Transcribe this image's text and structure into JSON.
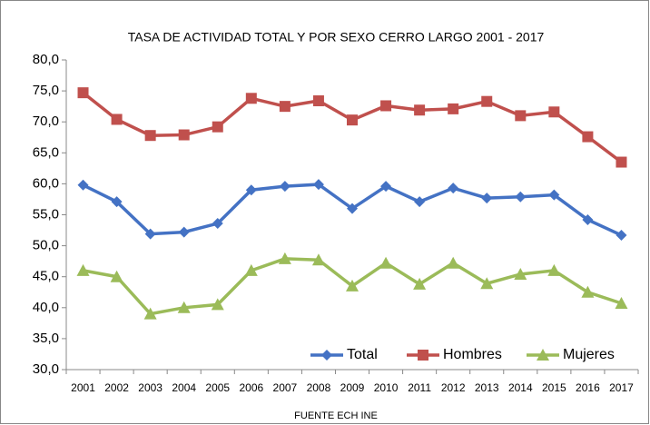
{
  "chart_data": {
    "type": "line",
    "title": "TASA DE ACTIVIDAD TOTAL Y POR SEXO CERRO LARGO 2001 - 2017",
    "note": "FUENTE ECH INE",
    "categories": [
      "2001",
      "2002",
      "2003",
      "2004",
      "2005",
      "2006",
      "2007",
      "2008",
      "2009",
      "2010",
      "2011",
      "2012",
      "2013",
      "2014",
      "2015",
      "2016",
      "2017"
    ],
    "series": [
      {
        "name": "Total",
        "color": "#4472c4",
        "marker": "diamond",
        "values": [
          59.8,
          57.1,
          51.9,
          52.2,
          53.6,
          59.0,
          59.6,
          59.9,
          56.0,
          59.6,
          57.1,
          59.3,
          57.7,
          57.9,
          58.2,
          54.2,
          51.7
        ]
      },
      {
        "name": "Hombres",
        "color": "#c0504d",
        "marker": "square",
        "values": [
          74.7,
          70.4,
          67.8,
          67.9,
          69.2,
          73.8,
          72.5,
          73.4,
          70.3,
          72.6,
          71.9,
          72.1,
          73.3,
          71.0,
          71.6,
          67.6,
          63.5
        ]
      },
      {
        "name": "Mujeres",
        "color": "#9bbb59",
        "marker": "triangle",
        "values": [
          46.0,
          45.0,
          39.0,
          40.0,
          40.5,
          46.0,
          47.9,
          47.7,
          43.5,
          47.2,
          43.8,
          47.2,
          43.9,
          45.4,
          46.0,
          42.5,
          40.7
        ]
      }
    ],
    "ylim": [
      30,
      80
    ],
    "yticks": [
      {
        "value": 30,
        "label": "30,0"
      },
      {
        "value": 35,
        "label": "35,0"
      },
      {
        "value": 40,
        "label": "40,0"
      },
      {
        "value": 45,
        "label": "45,0"
      },
      {
        "value": 50,
        "label": "50,0"
      },
      {
        "value": 55,
        "label": "55,0"
      },
      {
        "value": 60,
        "label": "60,0"
      },
      {
        "value": 65,
        "label": "65,0"
      },
      {
        "value": 70,
        "label": "70,0"
      },
      {
        "value": 75,
        "label": "75,0"
      },
      {
        "value": 80,
        "label": "80,0"
      }
    ],
    "grid": false,
    "legend": "lower right"
  }
}
